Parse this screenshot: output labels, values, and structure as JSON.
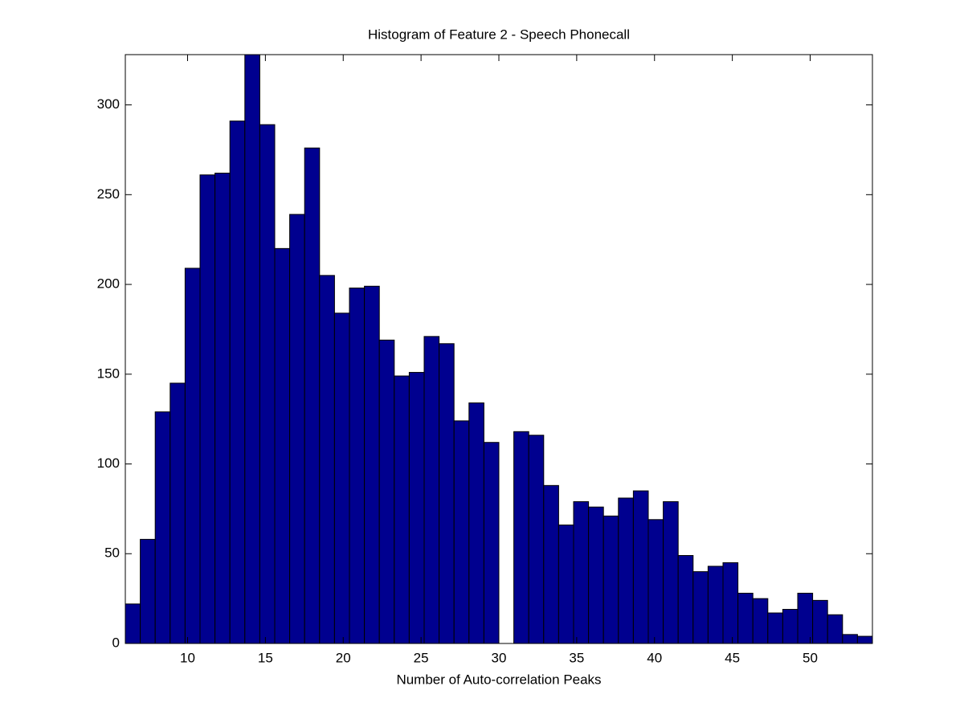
{
  "chart_data": {
    "type": "histogram",
    "title": "Histogram of Feature 2 - Speech Phonecall",
    "xlabel": "Number of Auto-correlation Peaks",
    "bins": [
      6,
      6.96,
      7.92,
      8.88,
      9.84,
      10.8,
      11.76,
      12.72,
      13.68,
      14.64,
      15.6,
      16.56,
      17.52,
      18.48,
      19.44,
      20.4,
      21.36,
      22.32,
      23.28,
      24.24,
      25.2,
      26.16,
      27.12,
      28.08,
      29.04,
      30,
      30.96,
      31.92,
      32.88,
      33.84,
      34.8,
      35.76,
      36.72,
      37.68,
      38.64,
      39.6,
      40.56,
      41.52,
      42.48,
      43.44,
      44.4,
      45.36,
      46.32,
      47.28,
      48.24,
      49.2,
      50.16,
      51.12,
      52.08,
      53.04,
      54
    ],
    "counts": [
      22,
      58,
      129,
      145,
      209,
      261,
      262,
      291,
      330,
      289,
      220,
      239,
      276,
      205,
      184,
      198,
      199,
      169,
      149,
      151,
      171,
      167,
      124,
      134,
      112,
      0,
      118,
      116,
      88,
      66,
      79,
      76,
      71,
      81,
      85,
      69,
      79,
      49,
      40,
      43,
      45,
      28,
      25,
      17,
      19,
      28,
      24,
      16,
      5,
      4
    ],
    "color": "#00008f",
    "edgecolor": "#000000",
    "xlim": [
      6,
      54
    ],
    "xticks": [
      10,
      15,
      20,
      25,
      30,
      35,
      40,
      45,
      50
    ],
    "ylim": [
      0,
      328
    ],
    "yticks": [
      0,
      50,
      100,
      150,
      200,
      250,
      300
    ]
  }
}
